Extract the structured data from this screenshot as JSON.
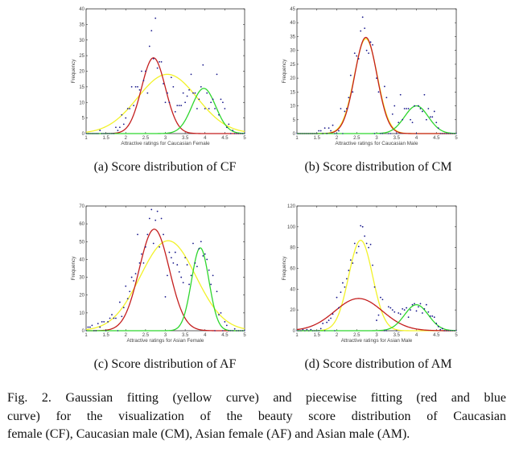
{
  "caption": {
    "lines": [
      "Fig. 2.  Gaussian fitting (yellow curve) and piecewise fitting (red and blue",
      "curve) for the visualization of the beauty score distribution of Caucasian",
      "female (CF), Caucasian male (CM), Asian female (AF) and Asian male (AM)."
    ]
  },
  "colors": {
    "yellow": "#f2f22a",
    "red": "#c41e1e",
    "green": "#2ed62e",
    "points": "#1a1a8c",
    "axis": "#333333"
  },
  "chart_data": [
    {
      "type": "scatter",
      "subcaption": "(a) Score distribution of CF",
      "xlabel": "Attractive ratings for Caucasian Female",
      "ylabel": "Frequency",
      "xlim": [
        1,
        5
      ],
      "ylim": [
        0,
        40
      ],
      "xticks": [
        "1",
        "1.5",
        "2",
        "2.5",
        "3",
        "3.5",
        "4",
        "4.5",
        "5"
      ],
      "yticks": [
        "0",
        "5",
        "10",
        "15",
        "20",
        "25",
        "30",
        "35",
        "40"
      ],
      "curves": [
        {
          "color": "yellow",
          "mean": 3.05,
          "peak": 19,
          "sigma": 0.75
        },
        {
          "color": "red",
          "mean": 2.7,
          "peak": 24.3,
          "sigma": 0.3
        },
        {
          "color": "green",
          "mean": 3.97,
          "peak": 14.5,
          "sigma": 0.3
        }
      ],
      "points": [
        [
          1.35,
          1
        ],
        [
          1.75,
          2
        ],
        [
          1.8,
          1
        ],
        [
          1.85,
          2
        ],
        [
          1.9,
          6
        ],
        [
          1.95,
          3
        ],
        [
          2,
          5
        ],
        [
          2.05,
          8
        ],
        [
          2.1,
          8
        ],
        [
          2.15,
          15
        ],
        [
          2.2,
          9
        ],
        [
          2.25,
          15
        ],
        [
          2.3,
          15
        ],
        [
          2.35,
          14
        ],
        [
          2.4,
          20
        ],
        [
          2.45,
          17
        ],
        [
          2.5,
          20
        ],
        [
          2.55,
          13
        ],
        [
          2.6,
          28
        ],
        [
          2.65,
          33
        ],
        [
          2.7,
          24
        ],
        [
          2.75,
          37
        ],
        [
          2.8,
          21
        ],
        [
          2.85,
          23
        ],
        [
          2.9,
          23
        ],
        [
          2.95,
          16
        ],
        [
          3,
          10
        ],
        [
          3.05,
          13
        ],
        [
          3.1,
          10
        ],
        [
          3.15,
          18
        ],
        [
          3.2,
          15
        ],
        [
          3.25,
          7
        ],
        [
          3.3,
          9
        ],
        [
          3.35,
          9
        ],
        [
          3.4,
          9
        ],
        [
          3.45,
          13
        ],
        [
          3.5,
          10
        ],
        [
          3.55,
          12
        ],
        [
          3.6,
          14
        ],
        [
          3.65,
          19
        ],
        [
          3.7,
          13
        ],
        [
          3.75,
          13
        ],
        [
          3.8,
          8
        ],
        [
          3.85,
          11
        ],
        [
          3.9,
          15
        ],
        [
          3.95,
          22
        ],
        [
          4,
          8
        ],
        [
          4.05,
          13
        ],
        [
          4.1,
          8
        ],
        [
          4.15,
          10
        ],
        [
          4.2,
          11
        ],
        [
          4.25,
          8
        ],
        [
          4.3,
          19
        ],
        [
          4.35,
          6
        ],
        [
          4.4,
          11
        ],
        [
          4.45,
          10
        ],
        [
          4.5,
          8
        ],
        [
          4.55,
          2
        ],
        [
          4.6,
          3
        ],
        [
          4.7,
          1
        ]
      ]
    },
    {
      "type": "scatter",
      "subcaption": "(b) Score distribution of CM",
      "xlabel": "Attractive ratings for Caucasian Male",
      "ylabel": "Frequency",
      "xlim": [
        1,
        5
      ],
      "ylim": [
        0,
        45
      ],
      "xticks": [
        "1",
        "1.5",
        "2",
        "2.5",
        "3",
        "3.5",
        "4",
        "4.5",
        "5"
      ],
      "yticks": [
        "0",
        "5",
        "10",
        "15",
        "20",
        "25",
        "30",
        "35",
        "40",
        "45"
      ],
      "curves": [
        {
          "color": "yellow",
          "mean": 2.73,
          "peak": 34.2,
          "sigma": 0.29
        },
        {
          "color": "red",
          "mean": 2.73,
          "peak": 34.7,
          "sigma": 0.28
        },
        {
          "color": "green",
          "mean": 4.0,
          "peak": 10,
          "sigma": 0.3
        }
      ],
      "points": [
        [
          1.55,
          1
        ],
        [
          1.6,
          1
        ],
        [
          1.7,
          2
        ],
        [
          1.8,
          2
        ],
        [
          1.85,
          1
        ],
        [
          1.9,
          3
        ],
        [
          2.05,
          1
        ],
        [
          2.1,
          9
        ],
        [
          2.2,
          8
        ],
        [
          2.25,
          9
        ],
        [
          2.3,
          13
        ],
        [
          2.35,
          21
        ],
        [
          2.4,
          15
        ],
        [
          2.45,
          29
        ],
        [
          2.5,
          28
        ],
        [
          2.55,
          27
        ],
        [
          2.6,
          37
        ],
        [
          2.65,
          42
        ],
        [
          2.7,
          38
        ],
        [
          2.75,
          30
        ],
        [
          2.8,
          29
        ],
        [
          2.85,
          33
        ],
        [
          2.9,
          32
        ],
        [
          3,
          20
        ],
        [
          3.05,
          15
        ],
        [
          3.2,
          17
        ],
        [
          3.25,
          13
        ],
        [
          3.4,
          7
        ],
        [
          3.45,
          10
        ],
        [
          3.55,
          4
        ],
        [
          3.6,
          14
        ],
        [
          3.65,
          5
        ],
        [
          3.7,
          9
        ],
        [
          3.75,
          9
        ],
        [
          3.8,
          9
        ],
        [
          3.85,
          5
        ],
        [
          3.9,
          4
        ],
        [
          3.95,
          10
        ],
        [
          4.05,
          10
        ],
        [
          4.1,
          9
        ],
        [
          4.15,
          8
        ],
        [
          4.2,
          14
        ],
        [
          4.25,
          5
        ],
        [
          4.3,
          9
        ],
        [
          4.35,
          6
        ],
        [
          4.4,
          6
        ],
        [
          4.45,
          8
        ],
        [
          4.5,
          4
        ],
        [
          4.55,
          2
        ]
      ]
    },
    {
      "type": "scatter",
      "subcaption": "(c) Score distribution of AF",
      "xlabel": "Attractive ratings for Asian Female",
      "ylabel": "Frequency",
      "xlim": [
        1,
        5
      ],
      "ylim": [
        0,
        70
      ],
      "xticks": [
        "1",
        "1.5",
        "2",
        "2.5",
        "3",
        "3.5",
        "4",
        "4.5",
        "5"
      ],
      "yticks": [
        "0",
        "10",
        "20",
        "30",
        "40",
        "50",
        "60",
        "70"
      ],
      "curves": [
        {
          "color": "yellow",
          "mean": 3.07,
          "peak": 50.5,
          "sigma": 0.7
        },
        {
          "color": "red",
          "mean": 2.72,
          "peak": 57,
          "sigma": 0.38
        },
        {
          "color": "green",
          "mean": 3.88,
          "peak": 46.5,
          "sigma": 0.22
        }
      ],
      "points": [
        [
          1.05,
          2
        ],
        [
          1.1,
          2
        ],
        [
          1.15,
          3
        ],
        [
          1.3,
          4
        ],
        [
          1.35,
          2
        ],
        [
          1.4,
          5
        ],
        [
          1.45,
          5
        ],
        [
          1.55,
          5
        ],
        [
          1.6,
          7
        ],
        [
          1.65,
          9
        ],
        [
          1.7,
          7
        ],
        [
          1.75,
          7
        ],
        [
          1.85,
          16
        ],
        [
          1.9,
          8
        ],
        [
          1.95,
          13
        ],
        [
          2,
          25
        ],
        [
          2.05,
          18
        ],
        [
          2.1,
          22
        ],
        [
          2.15,
          30
        ],
        [
          2.2,
          28
        ],
        [
          2.25,
          32
        ],
        [
          2.3,
          54
        ],
        [
          2.35,
          38
        ],
        [
          2.4,
          43
        ],
        [
          2.45,
          38
        ],
        [
          2.5,
          47
        ],
        [
          2.55,
          54
        ],
        [
          2.6,
          63
        ],
        [
          2.65,
          68
        ],
        [
          2.7,
          49
        ],
        [
          2.75,
          62
        ],
        [
          2.8,
          67
        ],
        [
          2.85,
          47
        ],
        [
          2.9,
          63
        ],
        [
          2.95,
          54
        ],
        [
          3,
          19
        ],
        [
          3.05,
          31
        ],
        [
          3.1,
          44
        ],
        [
          3.15,
          41
        ],
        [
          3.2,
          38
        ],
        [
          3.25,
          44
        ],
        [
          3.3,
          37
        ],
        [
          3.35,
          33
        ],
        [
          3.4,
          30
        ],
        [
          3.45,
          27
        ],
        [
          3.5,
          41
        ],
        [
          3.55,
          37
        ],
        [
          3.6,
          26
        ],
        [
          3.65,
          31
        ],
        [
          3.7,
          49
        ],
        [
          3.75,
          38
        ],
        [
          3.8,
          36
        ],
        [
          3.85,
          46
        ],
        [
          3.9,
          50
        ],
        [
          3.95,
          42
        ],
        [
          4,
          43
        ],
        [
          4.05,
          40
        ],
        [
          4.1,
          34
        ],
        [
          4.15,
          26
        ],
        [
          4.2,
          31
        ],
        [
          4.3,
          22
        ],
        [
          4.35,
          9
        ],
        [
          4.4,
          10
        ],
        [
          4.5,
          5
        ],
        [
          4.55,
          3
        ],
        [
          4.75,
          1
        ]
      ]
    },
    {
      "type": "scatter",
      "subcaption": "(d) Score distribution of AM",
      "xlabel": "Attractive ratings for Asian Male",
      "ylabel": "Frequency",
      "xlim": [
        1,
        5
      ],
      "ylim": [
        0,
        120
      ],
      "xticks": [
        "1",
        "1.5",
        "2",
        "2.5",
        "3",
        "3.5",
        "4",
        "4.5",
        "5"
      ],
      "yticks": [
        "0",
        "20",
        "40",
        "60",
        "80",
        "100",
        "120"
      ],
      "curves": [
        {
          "color": "yellow",
          "mean": 2.6,
          "peak": 87,
          "sigma": 0.3
        },
        {
          "color": "red",
          "mean": 2.55,
          "peak": 31,
          "sigma": 0.6
        },
        {
          "color": "green",
          "mean": 4.0,
          "peak": 25,
          "sigma": 0.3
        }
      ],
      "points": [
        [
          1.15,
          1
        ],
        [
          1.25,
          1
        ],
        [
          1.35,
          1
        ],
        [
          1.6,
          2
        ],
        [
          1.65,
          7
        ],
        [
          1.75,
          8
        ],
        [
          1.8,
          10
        ],
        [
          1.85,
          12
        ],
        [
          1.9,
          16
        ],
        [
          2,
          32
        ],
        [
          2.05,
          22
        ],
        [
          2.1,
          37
        ],
        [
          2.15,
          46
        ],
        [
          2.2,
          42
        ],
        [
          2.25,
          50
        ],
        [
          2.3,
          58
        ],
        [
          2.35,
          68
        ],
        [
          2.4,
          65
        ],
        [
          2.45,
          84
        ],
        [
          2.5,
          75
        ],
        [
          2.55,
          81
        ],
        [
          2.6,
          101
        ],
        [
          2.65,
          100
        ],
        [
          2.7,
          91
        ],
        [
          2.75,
          84
        ],
        [
          2.8,
          80
        ],
        [
          2.85,
          83
        ],
        [
          2.9,
          63
        ],
        [
          2.95,
          42
        ],
        [
          3,
          10
        ],
        [
          3.05,
          15
        ],
        [
          3.1,
          32
        ],
        [
          3.15,
          30
        ],
        [
          3.3,
          23
        ],
        [
          3.35,
          22
        ],
        [
          3.4,
          20
        ],
        [
          3.45,
          18
        ],
        [
          3.55,
          17
        ],
        [
          3.6,
          16
        ],
        [
          3.65,
          21
        ],
        [
          3.7,
          20
        ],
        [
          3.75,
          22
        ],
        [
          3.8,
          13
        ],
        [
          3.85,
          20
        ],
        [
          3.9,
          25
        ],
        [
          3.95,
          26
        ],
        [
          4,
          19
        ],
        [
          4.05,
          23
        ],
        [
          4.1,
          26
        ],
        [
          4.15,
          17
        ],
        [
          4.2,
          21
        ],
        [
          4.25,
          25
        ],
        [
          4.3,
          18
        ],
        [
          4.35,
          14
        ],
        [
          4.4,
          14
        ],
        [
          4.45,
          13
        ],
        [
          4.5,
          7
        ],
        [
          4.55,
          4
        ],
        [
          4.6,
          1
        ],
        [
          4.65,
          2
        ]
      ]
    }
  ]
}
